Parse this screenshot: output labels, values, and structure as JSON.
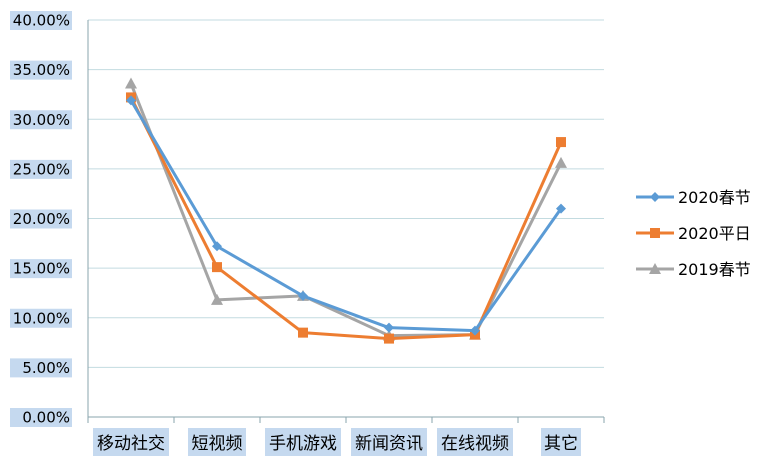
{
  "chart_data": {
    "type": "line",
    "categories": [
      "移动社交",
      "短视频",
      "手机游戏",
      "新闻资讯",
      "在线视频",
      "其它"
    ],
    "y_tick_labels": [
      "0.00%",
      "5.00%",
      "10.00%",
      "15.00%",
      "20.00%",
      "25.00%",
      "30.00%",
      "35.00%",
      "40.00%"
    ],
    "ylim": [
      0,
      40
    ],
    "y_unit": "percent",
    "grid": true,
    "legend_position": "right",
    "label_highlight_color": "#c5d9ef",
    "series": [
      {
        "name": "2020春节",
        "color": "#5b9bd5",
        "marker": "diamond",
        "values": [
          31.9,
          17.2,
          12.2,
          9.0,
          8.7,
          21.0
        ]
      },
      {
        "name": "2020平日",
        "color": "#ed7d31",
        "marker": "square",
        "values": [
          32.2,
          15.1,
          8.5,
          7.9,
          8.3,
          27.7
        ]
      },
      {
        "name": "2019春节",
        "color": "#a5a5a5",
        "marker": "triangle",
        "values": [
          33.6,
          11.8,
          12.2,
          8.2,
          8.3,
          25.6
        ]
      }
    ]
  }
}
